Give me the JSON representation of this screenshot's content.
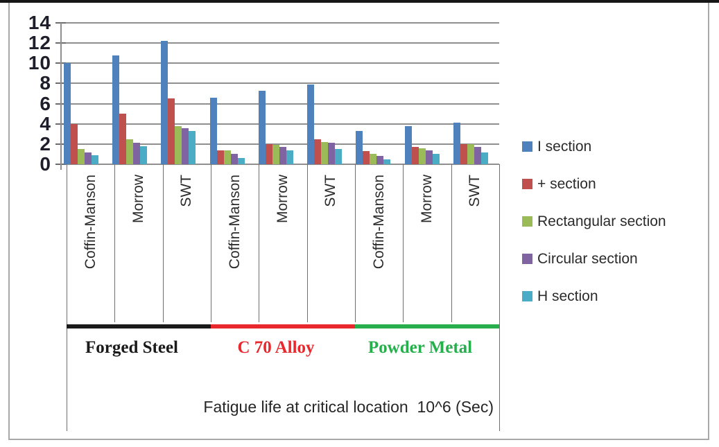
{
  "chart_data": {
    "type": "bar",
    "title": "",
    "xlabel": "Fatigue life at critical location  10^6 (Sec)",
    "ylabel": "",
    "ylim": [
      0,
      14
    ],
    "yticks": [
      0,
      2,
      4,
      6,
      8,
      10,
      12,
      14
    ],
    "grid": true,
    "legend_position": "right",
    "categories": [
      "Coffin-Manson",
      "Morrow",
      "SWT",
      "Coffin-Manson",
      "Morrow",
      "SWT",
      "Coffin-Manson",
      "Morrow",
      "SWT"
    ],
    "material_groups": [
      {
        "label": "Forged Steel",
        "color": "#1a1a1a",
        "span": 3
      },
      {
        "label": "C 70 Alloy",
        "color": "#e9282e",
        "span": 3
      },
      {
        "label": "Powder Metal",
        "color": "#27ae4d",
        "span": 3
      }
    ],
    "series": [
      {
        "name": "I section",
        "color": "#4f81bd",
        "values": [
          10.0,
          10.8,
          12.2,
          6.6,
          7.3,
          7.9,
          3.3,
          3.8,
          4.1
        ]
      },
      {
        "name": "+ section",
        "color": "#c0504d",
        "values": [
          4.0,
          5.0,
          6.5,
          1.4,
          2.0,
          2.5,
          1.3,
          1.7,
          2.0
        ]
      },
      {
        "name": "Rectangular section",
        "color": "#9bbb59",
        "values": [
          1.5,
          2.5,
          3.8,
          1.4,
          1.9,
          2.2,
          1.0,
          1.6,
          2.0
        ]
      },
      {
        "name": "Circular section",
        "color": "#8064a2",
        "values": [
          1.2,
          2.1,
          3.6,
          1.0,
          1.7,
          2.1,
          0.8,
          1.4,
          1.7
        ]
      },
      {
        "name": "H section",
        "color": "#4bacc6",
        "values": [
          0.9,
          1.8,
          3.3,
          0.6,
          1.4,
          1.5,
          0.5,
          1.0,
          1.2
        ]
      }
    ]
  }
}
